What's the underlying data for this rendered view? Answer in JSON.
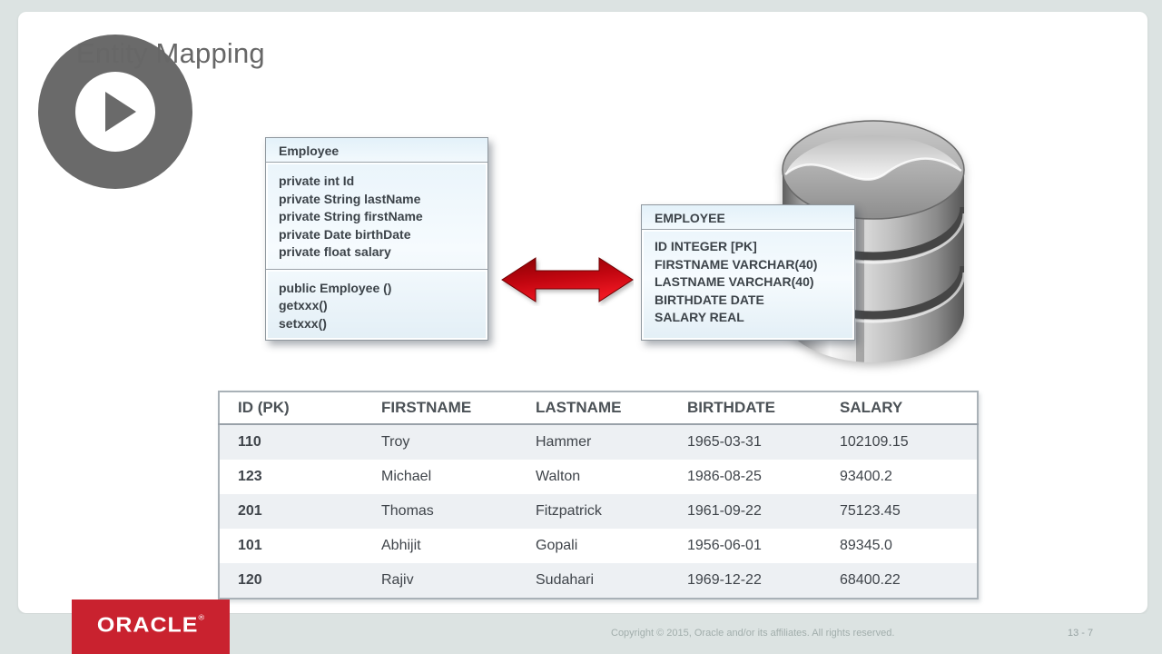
{
  "slide": {
    "title": "Entity Mapping",
    "page_number": "13 - 7",
    "copyright": "Copyright © 2015, Oracle and/or its affiliates. All rights reserved.",
    "brand": "ORACLE",
    "brand_mark": "®",
    "brand_color": "#c9222f"
  },
  "uml_class": {
    "name": "Employee",
    "attributes": [
      "private int Id",
      "private String lastName",
      "private String firstName",
      "private Date birthDate",
      "private float salary"
    ],
    "methods": [
      "public Employee ()",
      "getxxx()",
      "setxxx()"
    ]
  },
  "db_table_def": {
    "name": "EMPLOYEE",
    "columns": [
      "ID INTEGER [PK]",
      "FIRSTNAME VARCHAR(40)",
      "LASTNAME VARCHAR(40)",
      "BIRTHDATE DATE",
      "SALARY REAL"
    ]
  },
  "mapping_arrow": {
    "color_dark": "#860104",
    "color_bright": "#ee1722"
  },
  "data_table": {
    "headers": [
      "ID (PK)",
      "FIRSTNAME",
      "LASTNAME",
      "BIRTHDATE",
      "SALARY"
    ],
    "rows": [
      [
        "110",
        "Troy",
        "Hammer",
        "1965-03-31",
        "102109.15"
      ],
      [
        "123",
        "Michael",
        "Walton",
        "1986-08-25",
        "93400.2"
      ],
      [
        "201",
        "Thomas",
        "Fitzpatrick",
        "1961-09-22",
        "75123.45"
      ],
      [
        "101",
        "Abhijit",
        "Gopali",
        "1956-06-01",
        "89345.0"
      ],
      [
        "120",
        "Rajiv",
        "Sudahari",
        "1969-12-22",
        "68400.22"
      ]
    ]
  }
}
